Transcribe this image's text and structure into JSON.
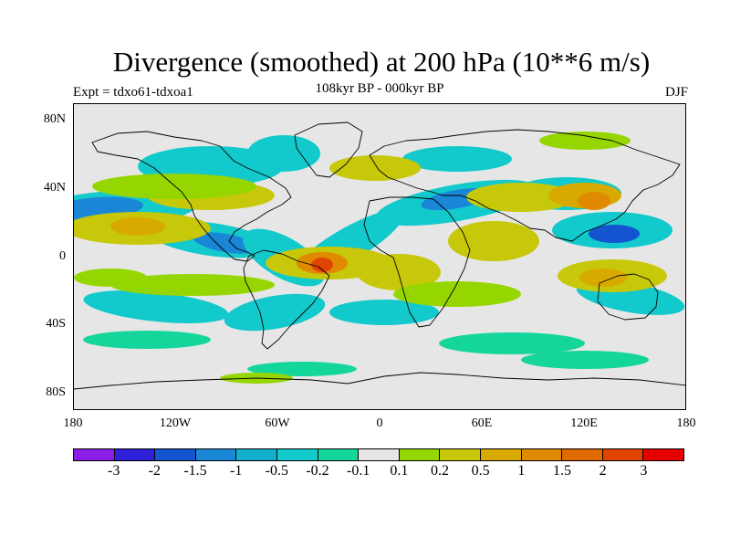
{
  "title": "Divergence (smoothed) at 200 hPa (10**6 m/s)",
  "subtitle": "108kyr BP - 000kyr BP",
  "experiment": "Expt = tdxo61-tdxoa1",
  "season": "DJF",
  "lat_labels": [
    "80N",
    "40N",
    "0",
    "40S",
    "80S"
  ],
  "lon_labels": [
    "180",
    "120W",
    "60W",
    "0",
    "60E",
    "120E",
    "180"
  ],
  "colorbar": {
    "colors": [
      "#8a1ee6",
      "#2e1fd8",
      "#1454d0",
      "#1a86d6",
      "#12aecc",
      "#12c9cc",
      "#14d69a",
      "#e6e6e6",
      "#96d600",
      "#c7c80a",
      "#d8aa00",
      "#df8a00",
      "#e06a00",
      "#e04400",
      "#e60000"
    ],
    "labels": [
      "-3",
      "-2",
      "-1.5",
      "-1",
      "-0.5",
      "-0.2",
      "-0.1",
      "0.1",
      "0.2",
      "0.5",
      "1",
      "1.5",
      "2",
      "3"
    ]
  },
  "colors": {
    "background": "#e6e6e6",
    "neg_light": "#14d69a",
    "neg_mid": "#12c9cc",
    "neg_strong": "#1a86d6",
    "neg_deep": "#1454d0",
    "pos_light": "#96d600",
    "pos_mid": "#c7c80a",
    "pos_strong": "#d8aa00",
    "pos_orange": "#df8a00",
    "pos_red": "#e04400"
  }
}
